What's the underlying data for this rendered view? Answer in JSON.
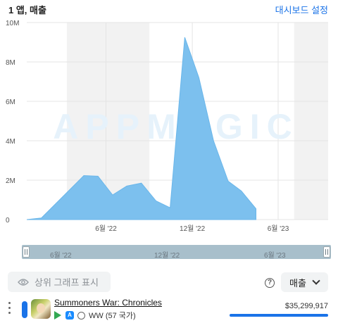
{
  "header": {
    "left_label": "1 앱, 매출",
    "right_link": "대시보드 설정"
  },
  "watermark": "APPMAGIC",
  "chart_data": {
    "type": "area",
    "title": "",
    "xlabel": "",
    "ylabel": "",
    "y_ticks": [
      "0",
      "2M",
      "4M",
      "6M",
      "8M",
      "10M"
    ],
    "ylim": [
      0,
      10000000
    ],
    "x_ticks": [
      {
        "label": "6월 '22",
        "date": "2022-06-01"
      },
      {
        "label": "12월 '22",
        "date": "2022-12-01"
      },
      {
        "label": "6월 '23",
        "date": "2023-06-01"
      }
    ],
    "xlim": [
      "2021-12-15",
      "2023-09-15"
    ],
    "grid": true,
    "shaded_ranges": [
      {
        "from": "2022-03-10",
        "to": "2022-09-01"
      },
      {
        "from": "2023-07-05",
        "to": "2023-09-15"
      }
    ],
    "partial_from": "2023-08-10",
    "series": [
      {
        "color": "#7cc0ee",
        "points": [
          {
            "x": "2021-12-15",
            "y": 0
          },
          {
            "x": "2022-01-15",
            "y": 80000
          },
          {
            "x": "2022-04-15",
            "y": 2230000
          },
          {
            "x": "2022-05-15",
            "y": 2200000
          },
          {
            "x": "2022-06-15",
            "y": 1250000
          },
          {
            "x": "2022-07-15",
            "y": 1700000
          },
          {
            "x": "2022-08-15",
            "y": 1850000
          },
          {
            "x": "2022-09-15",
            "y": 950000
          },
          {
            "x": "2022-10-15",
            "y": 600000
          },
          {
            "x": "2022-11-15",
            "y": 9250000
          },
          {
            "x": "2022-12-15",
            "y": 7200000
          },
          {
            "x": "2023-01-15",
            "y": 4000000
          },
          {
            "x": "2023-02-15",
            "y": 1950000
          },
          {
            "x": "2023-03-15",
            "y": 1450000
          },
          {
            "x": "2023-04-15",
            "y": 550000
          }
        ]
      }
    ]
  },
  "slider": {
    "ticks": [
      "6월 '22",
      "12월 '22",
      "6월 '23"
    ]
  },
  "controls": {
    "show_top_graph": "상위 그래프 표시",
    "help_icon": "?",
    "metric_label": "매출"
  },
  "app_row": {
    "name": "Summoners War: Chronicles",
    "region": "WW (57 국가)",
    "revenue": "$35,299,917",
    "color": "#1a73e8"
  }
}
